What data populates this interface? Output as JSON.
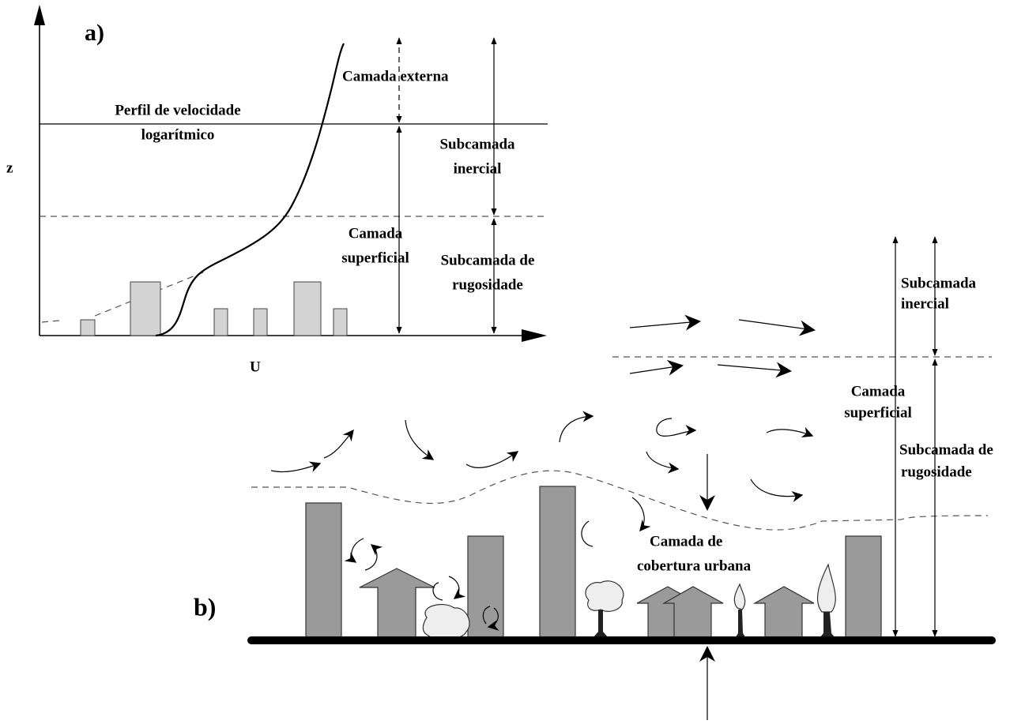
{
  "panel_a": {
    "label": "a)",
    "y_axis_label": "z",
    "x_axis_label": "U",
    "profile_label": [
      "Perfil de velocidade",
      "logarítmico"
    ],
    "outer_layer": "Camada externa",
    "inertial_sublayer": [
      "Subcamada",
      "inercial"
    ],
    "surface_layer": [
      "Camada",
      "superficial"
    ],
    "roughness_sublayer": [
      "Subcamada de",
      "rugosidade"
    ]
  },
  "panel_b": {
    "label": "b)",
    "inertial_sublayer": [
      "Subcamada",
      "inercial"
    ],
    "surface_layer": [
      "Camada",
      "superficial"
    ],
    "roughness_sublayer": [
      "Subcamada de",
      "rugosidade"
    ],
    "urban_canopy_layer": [
      "Camada de",
      "cobertura urbana"
    ]
  }
}
